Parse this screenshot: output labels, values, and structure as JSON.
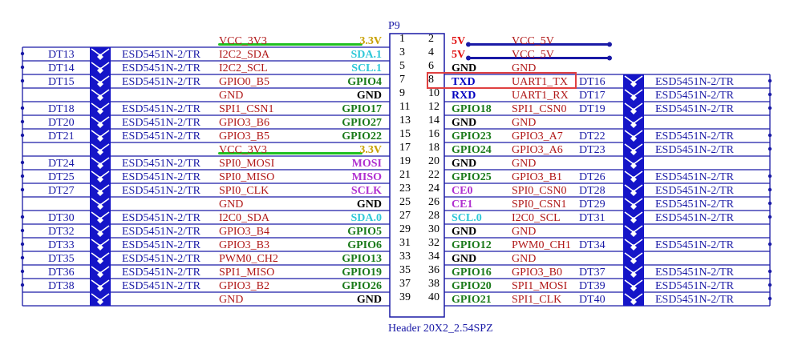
{
  "connector": {
    "ref": "P9",
    "footprint": "Header 20X2_2.54SPZ"
  },
  "colors": {
    "wire": "#1a1aa6",
    "tvs_fill": "#1515c8",
    "net": "#b01818",
    "gnd": "#000000",
    "gpio": "#1a7a1a",
    "i2c": "#2ec8d8",
    "spi0": "#b030d0",
    "power": "#c8a000",
    "power5": "#e01010",
    "uart": "#0000c0",
    "green_bar": "#20c020",
    "blue_bar": "#1a1aa6",
    "highlight": "#e04040"
  },
  "rows": [
    {
      "pin_l": "1",
      "pin_r": "2",
      "left": {
        "dt": "",
        "part": "",
        "net": "VCC_3V3",
        "sig": "3.3V",
        "sig_type": "power",
        "bar": "green"
      },
      "right": {
        "sig": "5V",
        "sig_type": "power5",
        "net": "VCC_5V",
        "dt": "",
        "part": "",
        "bar": "blue"
      }
    },
    {
      "pin_l": "3",
      "pin_r": "4",
      "left": {
        "dt": "DT13",
        "part": "ESD5451N-2/TR",
        "net": "I2C2_SDA",
        "sig": "SDA.1",
        "sig_type": "i2c"
      },
      "right": {
        "sig": "5V",
        "sig_type": "power5",
        "net": "VCC_5V",
        "dt": "",
        "part": "",
        "bar": "blue"
      }
    },
    {
      "pin_l": "5",
      "pin_r": "6",
      "left": {
        "dt": "DT14",
        "part": "ESD5451N-2/TR",
        "net": "I2C2_SCL",
        "sig": "SCL.1",
        "sig_type": "i2c"
      },
      "right": {
        "sig": "GND",
        "sig_type": "gnd",
        "net": "GND",
        "dt": "",
        "part": ""
      }
    },
    {
      "pin_l": "7",
      "pin_r": "8",
      "left": {
        "dt": "DT15",
        "part": "ESD5451N-2/TR",
        "net": "GPIO0_B5",
        "sig": "GPIO4",
        "sig_type": "gpio"
      },
      "right": {
        "sig": "TXD",
        "sig_type": "uart",
        "net": "UART1_TX",
        "dt": "DT16",
        "part": "ESD5451N-2/TR",
        "highlight": true
      }
    },
    {
      "pin_l": "9",
      "pin_r": "10",
      "left": {
        "dt": "",
        "part": "",
        "net": "GND",
        "sig": "GND",
        "sig_type": "gnd"
      },
      "right": {
        "sig": "RXD",
        "sig_type": "uart",
        "net": "UART1_RX",
        "dt": "DT17",
        "part": "ESD5451N-2/TR"
      }
    },
    {
      "pin_l": "11",
      "pin_r": "12",
      "left": {
        "dt": "DT18",
        "part": "ESD5451N-2/TR",
        "net": "SPI1_CSN1",
        "sig": "GPIO17",
        "sig_type": "gpio"
      },
      "right": {
        "sig": "GPIO18",
        "sig_type": "gpio",
        "net": "SPI1_CSN0",
        "dt": "DT19",
        "part": "ESD5451N-2/TR"
      }
    },
    {
      "pin_l": "13",
      "pin_r": "14",
      "left": {
        "dt": "DT20",
        "part": "ESD5451N-2/TR",
        "net": "GPIO3_B6",
        "sig": "GPIO27",
        "sig_type": "gpio"
      },
      "right": {
        "sig": "GND",
        "sig_type": "gnd",
        "net": "GND",
        "dt": "",
        "part": ""
      }
    },
    {
      "pin_l": "15",
      "pin_r": "16",
      "left": {
        "dt": "DT21",
        "part": "ESD5451N-2/TR",
        "net": "GPIO3_B5",
        "sig": "GPIO22",
        "sig_type": "gpio"
      },
      "right": {
        "sig": "GPIO23",
        "sig_type": "gpio",
        "net": "GPIO3_A7",
        "dt": "DT22",
        "part": "ESD5451N-2/TR"
      }
    },
    {
      "pin_l": "17",
      "pin_r": "18",
      "left": {
        "dt": "",
        "part": "",
        "net": "VCC_3V3",
        "sig": "3.3V",
        "sig_type": "power",
        "bar": "green"
      },
      "right": {
        "sig": "GPIO24",
        "sig_type": "gpio",
        "net": "GPIO3_A6",
        "dt": "DT23",
        "part": "ESD5451N-2/TR"
      }
    },
    {
      "pin_l": "19",
      "pin_r": "20",
      "left": {
        "dt": "DT24",
        "part": "ESD5451N-2/TR",
        "net": "SPI0_MOSI",
        "sig": "MOSI",
        "sig_type": "spi0"
      },
      "right": {
        "sig": "GND",
        "sig_type": "gnd",
        "net": "GND",
        "dt": "",
        "part": ""
      }
    },
    {
      "pin_l": "21",
      "pin_r": "22",
      "left": {
        "dt": "DT25",
        "part": "ESD5451N-2/TR",
        "net": "SPI0_MISO",
        "sig": "MISO",
        "sig_type": "spi0"
      },
      "right": {
        "sig": "GPIO25",
        "sig_type": "gpio",
        "net": "GPIO3_B1",
        "dt": "DT26",
        "part": "ESD5451N-2/TR"
      }
    },
    {
      "pin_l": "23",
      "pin_r": "24",
      "left": {
        "dt": "DT27",
        "part": "ESD5451N-2/TR",
        "net": "SPI0_CLK",
        "sig": "SCLK",
        "sig_type": "spi0"
      },
      "right": {
        "sig": "CE0",
        "sig_type": "spi0",
        "net": "SPI0_CSN0",
        "dt": "DT28",
        "part": "ESD5451N-2/TR"
      }
    },
    {
      "pin_l": "25",
      "pin_r": "26",
      "left": {
        "dt": "",
        "part": "",
        "net": "GND",
        "sig": "GND",
        "sig_type": "gnd"
      },
      "right": {
        "sig": "CE1",
        "sig_type": "spi0",
        "net": "SPI0_CSN1",
        "dt": "DT29",
        "part": "ESD5451N-2/TR"
      }
    },
    {
      "pin_l": "27",
      "pin_r": "28",
      "left": {
        "dt": "DT30",
        "part": "ESD5451N-2/TR",
        "net": "I2C0_SDA",
        "sig": "SDA.0",
        "sig_type": "i2c"
      },
      "right": {
        "sig": "SCL.0",
        "sig_type": "i2c",
        "net": "I2C0_SCL",
        "dt": "DT31",
        "part": "ESD5451N-2/TR"
      }
    },
    {
      "pin_l": "29",
      "pin_r": "30",
      "left": {
        "dt": "DT32",
        "part": "ESD5451N-2/TR",
        "net": "GPIO3_B4",
        "sig": "GPIO5",
        "sig_type": "gpio"
      },
      "right": {
        "sig": "GND",
        "sig_type": "gnd",
        "net": "GND",
        "dt": "",
        "part": ""
      }
    },
    {
      "pin_l": "31",
      "pin_r": "32",
      "left": {
        "dt": "DT33",
        "part": "ESD5451N-2/TR",
        "net": "GPIO3_B3",
        "sig": "GPIO6",
        "sig_type": "gpio"
      },
      "right": {
        "sig": "GPIO12",
        "sig_type": "gpio",
        "net": "PWM0_CH1",
        "dt": "DT34",
        "part": "ESD5451N-2/TR"
      }
    },
    {
      "pin_l": "33",
      "pin_r": "34",
      "left": {
        "dt": "DT35",
        "part": "ESD5451N-2/TR",
        "net": "PWM0_CH2",
        "sig": "GPIO13",
        "sig_type": "gpio"
      },
      "right": {
        "sig": "GND",
        "sig_type": "gnd",
        "net": "GND",
        "dt": "",
        "part": ""
      }
    },
    {
      "pin_l": "35",
      "pin_r": "36",
      "left": {
        "dt": "DT36",
        "part": "ESD5451N-2/TR",
        "net": "SPI1_MISO",
        "sig": "GPIO19",
        "sig_type": "gpio"
      },
      "right": {
        "sig": "GPIO16",
        "sig_type": "gpio",
        "net": "GPIO3_B0",
        "dt": "DT37",
        "part": "ESD5451N-2/TR"
      }
    },
    {
      "pin_l": "37",
      "pin_r": "38",
      "left": {
        "dt": "DT38",
        "part": "ESD5451N-2/TR",
        "net": "GPIO3_B2",
        "sig": "GPIO26",
        "sig_type": "gpio"
      },
      "right": {
        "sig": "GPIO20",
        "sig_type": "gpio",
        "net": "SPI1_MOSI",
        "dt": "DT39",
        "part": "ESD5451N-2/TR"
      }
    },
    {
      "pin_l": "39",
      "pin_r": "40",
      "left": {
        "dt": "",
        "part": "",
        "net": "GND",
        "sig": "GND",
        "sig_type": "gnd"
      },
      "right": {
        "sig": "GPIO21",
        "sig_type": "gpio",
        "net": "SPI1_CLK",
        "dt": "DT40",
        "part": "ESD5451N-2/TR"
      }
    }
  ]
}
